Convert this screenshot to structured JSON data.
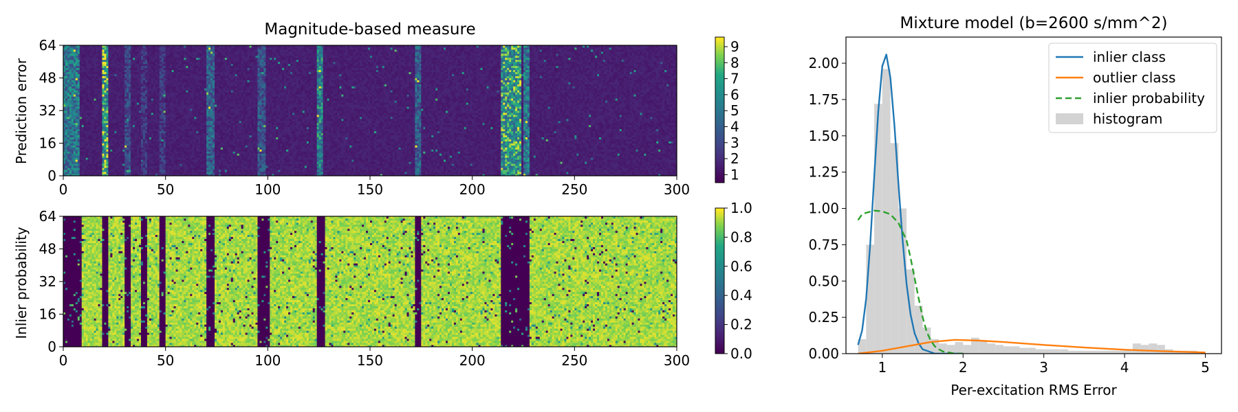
{
  "chart_data": [
    {
      "type": "heatmap",
      "title": "Magnitude-based measure",
      "ylabel": "Prediction error",
      "xlabel": "",
      "xlim": [
        0,
        300
      ],
      "ylim": [
        0,
        64
      ],
      "xticks": [
        "0",
        "50",
        "100",
        "150",
        "200",
        "250",
        "300"
      ],
      "yticks": [
        "0",
        "16",
        "32",
        "48",
        "64"
      ],
      "colormap": "viridis",
      "colorbar": {
        "range": [
          0.5,
          9.6
        ],
        "ticks": [
          "1",
          "2",
          "3",
          "4",
          "5",
          "6",
          "7",
          "8",
          "9"
        ]
      },
      "columns": 300,
      "rows": 64,
      "base_value": 1.2,
      "high_bands": [
        {
          "start": 0,
          "end": 7,
          "level": 5.0
        },
        {
          "start": 19,
          "end": 21,
          "level": 7.0
        },
        {
          "start": 30,
          "end": 32,
          "level": 3.0
        },
        {
          "start": 38,
          "end": 40,
          "level": 2.5
        },
        {
          "start": 47,
          "end": 49,
          "level": 2.5
        },
        {
          "start": 70,
          "end": 73,
          "level": 4.0
        },
        {
          "start": 95,
          "end": 98,
          "level": 3.5
        },
        {
          "start": 124,
          "end": 126,
          "level": 5.5
        },
        {
          "start": 172,
          "end": 174,
          "level": 4.0
        },
        {
          "start": 214,
          "end": 223,
          "level": 6.5
        },
        {
          "start": 225,
          "end": 227,
          "level": 5.0
        }
      ]
    },
    {
      "type": "heatmap",
      "title": "",
      "ylabel": "Inlier probability",
      "xlabel": "",
      "xlim": [
        0,
        300
      ],
      "ylim": [
        0,
        64
      ],
      "xticks": [
        "0",
        "50",
        "100",
        "150",
        "200",
        "250",
        "300"
      ],
      "yticks": [
        "0",
        "16",
        "32",
        "48",
        "64"
      ],
      "colormap": "viridis",
      "colorbar": {
        "range": [
          0.0,
          1.0
        ],
        "ticks": [
          "0.0",
          "0.2",
          "0.4",
          "0.6",
          "0.8",
          "1.0"
        ]
      },
      "columns": 300,
      "rows": 64,
      "base_value": 0.98,
      "outlier_bands": [
        {
          "start": 0,
          "end": 8
        },
        {
          "start": 19,
          "end": 21
        },
        {
          "start": 30,
          "end": 32
        },
        {
          "start": 38,
          "end": 40
        },
        {
          "start": 47,
          "end": 49
        },
        {
          "start": 70,
          "end": 73
        },
        {
          "start": 95,
          "end": 100
        },
        {
          "start": 124,
          "end": 127
        },
        {
          "start": 172,
          "end": 174
        },
        {
          "start": 214,
          "end": 227
        }
      ]
    },
    {
      "type": "line",
      "title": "Mixture model (b=2600 s/mm^2)",
      "xlabel": "Per-excitation RMS Error",
      "ylabel": "",
      "xlim": [
        0.55,
        5.2
      ],
      "ylim": [
        0,
        2.18
      ],
      "xticks": [
        1,
        2,
        3,
        4,
        5
      ],
      "yticks": [
        "0.00",
        "0.25",
        "0.50",
        "0.75",
        "1.00",
        "1.25",
        "1.50",
        "1.75",
        "2.00"
      ],
      "legend": {
        "position": "top-right",
        "entries": [
          "inlier class",
          "outlier class",
          "inlier probability",
          "histogram"
        ]
      },
      "series": [
        {
          "name": "inlier class",
          "color": "#1f77b4",
          "style": "solid",
          "x": [
            0.7,
            0.75,
            0.8,
            0.85,
            0.9,
            0.95,
            1.0,
            1.05,
            1.1,
            1.15,
            1.2,
            1.25,
            1.3,
            1.35,
            1.4,
            1.45,
            1.5,
            1.55,
            1.6,
            1.65,
            1.7,
            1.8,
            1.9,
            2.0
          ],
          "y": [
            0.06,
            0.16,
            0.38,
            0.75,
            1.22,
            1.67,
            1.98,
            2.06,
            1.9,
            1.57,
            1.17,
            0.79,
            0.48,
            0.27,
            0.14,
            0.07,
            0.03,
            0.02,
            0.01,
            0.0,
            0.0,
            0.0,
            0.0,
            0.0
          ]
        },
        {
          "name": "outlier class",
          "color": "#ff7f0e",
          "style": "solid",
          "x": [
            0.7,
            1.0,
            1.3,
            1.6,
            1.9,
            2.2,
            2.5,
            3.0,
            3.5,
            4.0,
            4.5,
            5.0
          ],
          "y": [
            0.0,
            0.02,
            0.05,
            0.08,
            0.095,
            0.09,
            0.08,
            0.06,
            0.042,
            0.027,
            0.016,
            0.008
          ]
        },
        {
          "name": "inlier probability",
          "color": "#2ca02c",
          "style": "dashed",
          "x": [
            0.7,
            0.75,
            0.8,
            0.9,
            1.0,
            1.1,
            1.2,
            1.3,
            1.35,
            1.4,
            1.45,
            1.5,
            1.55,
            1.6,
            1.65,
            1.7,
            1.75,
            1.8,
            1.9,
            2.0
          ],
          "y": [
            0.92,
            0.96,
            0.97,
            0.985,
            0.98,
            0.96,
            0.9,
            0.78,
            0.66,
            0.52,
            0.38,
            0.25,
            0.15,
            0.09,
            0.05,
            0.03,
            0.015,
            0.01,
            0.0,
            0.0
          ]
        }
      ],
      "histogram": {
        "name": "histogram",
        "color": "#d3d3d3",
        "bin_width": 0.1,
        "bin_starts": [
          0.7,
          0.8,
          0.9,
          1.0,
          1.1,
          1.2,
          1.3,
          1.4,
          1.5,
          1.6,
          1.7,
          1.8,
          1.9,
          2.0,
          2.1,
          2.2,
          2.3,
          2.4,
          2.5,
          2.6,
          2.7,
          2.8,
          2.9,
          3.0,
          3.1,
          3.2,
          3.3,
          3.4,
          3.5,
          3.6,
          3.7,
          3.8,
          3.9,
          4.0,
          4.1,
          4.2,
          4.3,
          4.4,
          4.5,
          4.6,
          4.7,
          4.8,
          4.9
        ],
        "values": [
          0.1,
          0.75,
          1.72,
          1.96,
          1.45,
          1.0,
          0.58,
          0.33,
          0.18,
          0.1,
          0.07,
          0.06,
          0.08,
          0.06,
          0.11,
          0.09,
          0.07,
          0.06,
          0.05,
          0.05,
          0.04,
          0.04,
          0.03,
          0.03,
          0.03,
          0.03,
          0.02,
          0.02,
          0.02,
          0.02,
          0.02,
          0.02,
          0.02,
          0.03,
          0.07,
          0.06,
          0.07,
          0.06,
          0.03,
          0.02,
          0.02,
          0.02,
          0.01
        ]
      }
    }
  ]
}
